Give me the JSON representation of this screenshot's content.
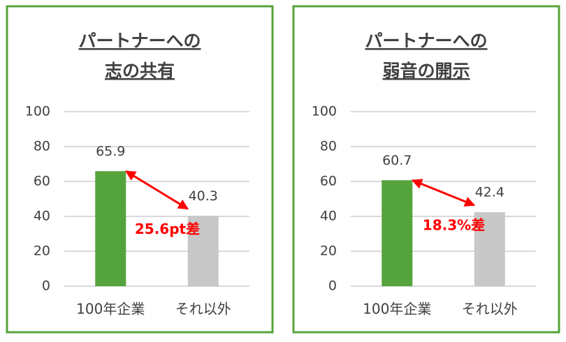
{
  "chart_data": [
    {
      "type": "bar",
      "title": [
        "パートナーへの",
        "志の共有"
      ],
      "categories": [
        "100年企業",
        "それ以外"
      ],
      "values": [
        65.9,
        40.3
      ],
      "colors": [
        "#55a33c",
        "#c8c8c8"
      ],
      "ylim": [
        0,
        100
      ],
      "yticks": [
        0,
        20,
        40,
        60,
        80,
        100
      ],
      "grid": true,
      "annotation": "25.6pt差",
      "annotation_color": "#ff0000"
    },
    {
      "type": "bar",
      "title": [
        "パートナーへの",
        "弱音の開示"
      ],
      "categories": [
        "100年企業",
        "それ以外"
      ],
      "values": [
        60.7,
        42.4
      ],
      "colors": [
        "#55a33c",
        "#c8c8c8"
      ],
      "ylim": [
        0,
        100
      ],
      "yticks": [
        0,
        20,
        40,
        60,
        80,
        100
      ],
      "grid": true,
      "annotation": "18.3%差",
      "annotation_color": "#ff0000"
    }
  ]
}
